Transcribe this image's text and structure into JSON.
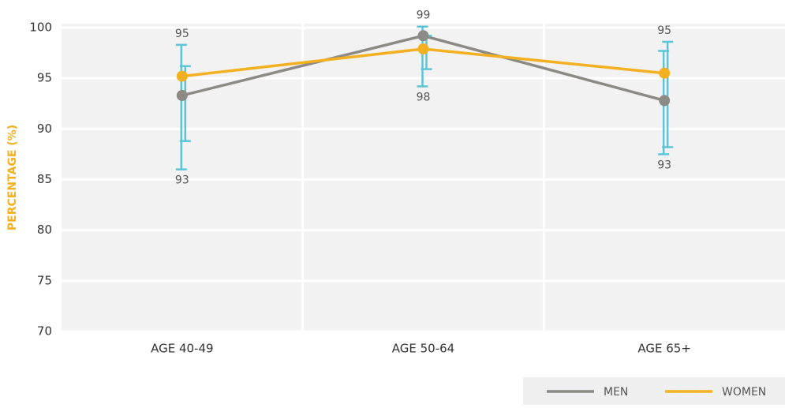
{
  "chart_data": {
    "type": "line",
    "y_label": "PERCENTAGE (%)",
    "categories": [
      "AGE 40-49",
      "AGE 50-64",
      "AGE 65+"
    ],
    "series": [
      {
        "name": "MEN",
        "color": "#8c8a85",
        "values": [
          93.3,
          99.2,
          92.8
        ],
        "value_labels": [
          "93",
          "99",
          "93"
        ],
        "error_low": [
          86.0,
          94.2,
          87.5
        ],
        "error_high": [
          98.3,
          100.1,
          97.7
        ]
      },
      {
        "name": "WOMEN",
        "color": "#f3b021",
        "values": [
          95.2,
          97.9,
          95.5
        ],
        "value_labels": [
          "95",
          "98",
          "95"
        ],
        "error_low": [
          88.8,
          95.9,
          88.2
        ],
        "error_high": [
          96.2,
          99.2,
          98.6
        ]
      }
    ],
    "error_color": "#5cc4d6",
    "ylim": [
      70,
      100
    ],
    "yticks": [
      70,
      75,
      80,
      85,
      90,
      95,
      100
    ],
    "grid": true,
    "legend": "bottom-right"
  }
}
